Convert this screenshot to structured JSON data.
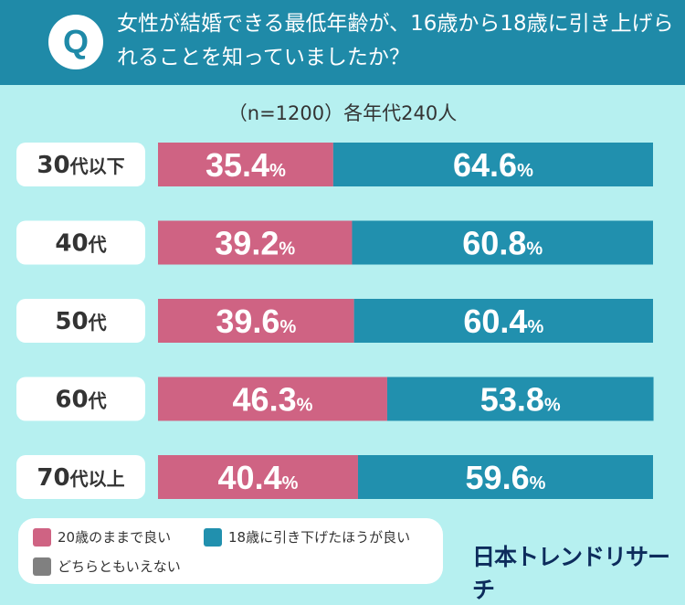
{
  "header": {
    "badge": "Q",
    "question": "女性が結婚できる最低年齢が、16歳から18歳に引き上げられることを知っていましたか？"
  },
  "subtitle": "（n=1200）各年代240人",
  "chart_data": {
    "type": "bar",
    "orientation": "horizontal-stacked-100",
    "categories": [
      "30代以下",
      "40代",
      "50代",
      "60代",
      "70代以上"
    ],
    "category_parts": [
      [
        "30",
        "代以下"
      ],
      [
        "40",
        "代"
      ],
      [
        "50",
        "代"
      ],
      [
        "60",
        "代"
      ],
      [
        "70",
        "代以上"
      ]
    ],
    "series": [
      {
        "name": "20歳のままで良い",
        "values": [
          35.4,
          39.2,
          39.6,
          46.3,
          40.4
        ],
        "color": "#cf6383"
      },
      {
        "name": "18歳に引き下げたほうが良い",
        "values": [
          64.6,
          60.8,
          60.4,
          53.8,
          59.6
        ],
        "color": "#2190ae"
      }
    ],
    "value_labels": [
      [
        "35.4",
        "64.6"
      ],
      [
        "39.2",
        "60.8"
      ],
      [
        "39.6",
        "60.4"
      ],
      [
        "46.3",
        "53.8"
      ],
      [
        "40.4",
        "59.6"
      ]
    ],
    "unit": "%"
  },
  "legend": {
    "items": [
      {
        "label": "20歳のままで良い",
        "color": "#cf6383"
      },
      {
        "label": "18歳に引き下げたほうが良い",
        "color": "#2190ae"
      },
      {
        "label": "どちらともいえない",
        "color": "#808080"
      }
    ]
  },
  "logo": "日本トレンドリサーチ"
}
